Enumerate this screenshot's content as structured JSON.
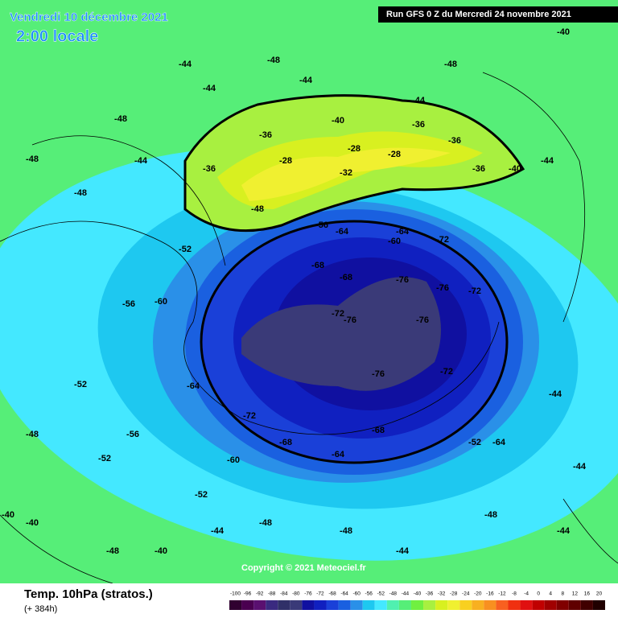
{
  "header": {
    "date": "Vendredi 10 décembre 2021",
    "time": "2:00 locale",
    "run": "Run GFS 0 Z du Mercredi 24 novembre 2021"
  },
  "footer": {
    "title": "Temp. 10hPa (stratos.)",
    "lead": "(+ 384h)",
    "copyright": "Copyright © 2021 Meteociel.fr"
  },
  "colorbar": {
    "ticks": [
      -100,
      -96,
      -92,
      -88,
      -84,
      -80,
      -76,
      -72,
      -68,
      -64,
      -60,
      -56,
      -52,
      -48,
      -44,
      -40,
      -36,
      -32,
      -28,
      -24,
      -20,
      -16,
      -12,
      -8,
      -4,
      0,
      4,
      8,
      12,
      16,
      20
    ],
    "colors": [
      "#300030",
      "#4a0050",
      "#5a1070",
      "#3a2a80",
      "#303068",
      "#3a3a78",
      "#1010a0",
      "#1020c0",
      "#1a40d8",
      "#1a60e0",
      "#2a90e8",
      "#1ec8f0",
      "#44e8ff",
      "#50f0b0",
      "#56ee78",
      "#70f040",
      "#a8f040",
      "#d8f020",
      "#f0f030",
      "#f8d020",
      "#f8b020",
      "#f89020",
      "#f86020",
      "#f03010",
      "#e01010",
      "#c00000",
      "#a00000",
      "#800000",
      "#600000",
      "#400000",
      "#200000"
    ]
  },
  "contour_labels": [
    -48,
    -44,
    -44,
    -48,
    -44,
    -48,
    -40,
    -44,
    -48,
    -48,
    -44,
    -44,
    -36,
    -40,
    -36,
    -28,
    -28,
    -36,
    -28,
    -32,
    -36,
    -36,
    -40,
    -48,
    -52,
    -56,
    -60,
    -64,
    -64,
    -72,
    -68,
    -68,
    -72,
    -76,
    -76,
    -76,
    -72,
    -76,
    -76,
    -72,
    -64,
    -60,
    -64,
    -68,
    -72,
    -68,
    -64,
    -60,
    -56,
    -52,
    -52,
    -48,
    -52,
    -48,
    -56,
    -52,
    -44,
    -48,
    -48,
    -44,
    -40,
    -40,
    -44,
    -44,
    -48,
    -44,
    -40
  ]
}
